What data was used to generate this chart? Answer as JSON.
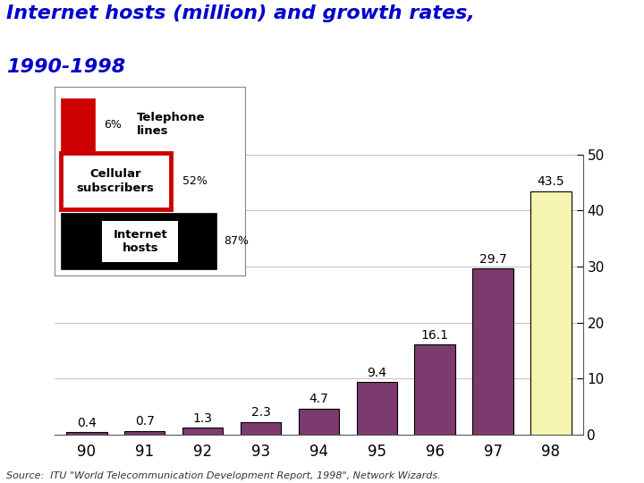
{
  "title_line1": "Internet hosts (million) and growth rates,",
  "title_line2": "1990-1998",
  "categories": [
    "90",
    "91",
    "92",
    "93",
    "94",
    "95",
    "96",
    "97",
    "98"
  ],
  "values": [
    0.4,
    0.7,
    1.3,
    2.3,
    4.7,
    9.4,
    16.1,
    29.7,
    43.5
  ],
  "bar_colors": [
    "#7B3B6E",
    "#7B3B6E",
    "#7B3B6E",
    "#7B3B6E",
    "#7B3B6E",
    "#7B3B6E",
    "#7B3B6E",
    "#7B3B6E",
    "#F5F5B0"
  ],
  "bar_edgecolor": "#000000",
  "ylim": [
    0,
    50
  ],
  "yticks": [
    0,
    10,
    20,
    30,
    40,
    50
  ],
  "title_color": "#0000CC",
  "legend_items": [
    {
      "label": "Telephone\nlines",
      "pct": "6%",
      "bar_color": "#CC0000",
      "border_color": "#CC0000",
      "text_color": "#000000",
      "style": "solid_red"
    },
    {
      "label": "Cellular\nsubscribers",
      "pct": "52%",
      "bar_color": "#FFFFFF",
      "border_color": "#CC0000",
      "text_color": "#000000",
      "style": "white_red_border"
    },
    {
      "label": "Internet\nhosts",
      "pct": "87%",
      "bar_color": "#000000",
      "border_color": "#000000",
      "text_color": "#FFFFFF",
      "style": "solid_black"
    }
  ],
  "source_text": "Source:  ITU \"World Telecommunication Development Report, 1998\", Network Wizards.",
  "background_color": "#FFFFFF",
  "value_label_fontsize": 10,
  "axis_tick_fontsize": 11,
  "title_fontsize": 16,
  "source_fontsize": 8
}
